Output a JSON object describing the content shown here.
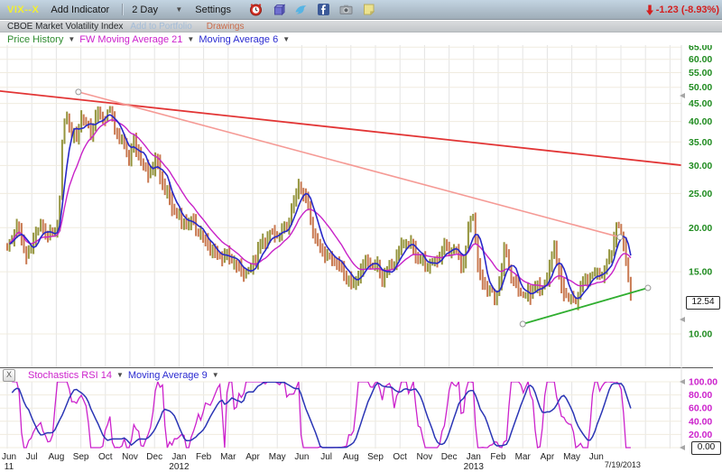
{
  "toolbar": {
    "symbol": "VIX--X",
    "add_indicator": "Add Indicator",
    "timeframe": "2 Day",
    "settings": "Settings",
    "icons": [
      "alarm-clock-icon",
      "cube-icon",
      "twitter-icon",
      "facebook-icon",
      "camera-icon",
      "note-icon"
    ],
    "change": "-1.23 (-8.93%)"
  },
  "subheader": {
    "index_name": "CBOE Market Volatility Index",
    "add_to_portfolio": "Add to Portfolio",
    "drawings": "Drawings"
  },
  "main_panel_header": {
    "price_history": "Price History",
    "ma21": "FW Moving Average 21",
    "ma6": "Moving Average 6"
  },
  "indicator_panel_header": {
    "close": "X",
    "stochastics": "Stochastics RSI 14",
    "ma9": "Moving Average 9"
  },
  "price_box": "12.54",
  "stoch_box": "0.00",
  "chart_data": [
    {
      "type": "candlestick",
      "symbol": "VIX--X",
      "title": "CBOE Market Volatility Index",
      "bar_interval": "2 Day",
      "y_scale": "log",
      "y_ticks": [
        "65.00",
        "60.00",
        "55.00",
        "50.00",
        "45.00",
        "40.00",
        "35.00",
        "30.00",
        "25.00",
        "20.00",
        "15.00",
        "10.00"
      ],
      "y_tick_values": [
        65,
        60,
        55,
        50,
        45,
        40,
        35,
        30,
        25,
        20,
        15,
        10
      ],
      "current_price": 12.54,
      "x_months": [
        "Jun",
        "Jul",
        "Aug",
        "Sep",
        "Oct",
        "Nov",
        "Dec",
        "Jan",
        "Feb",
        "Mar",
        "Apr",
        "May",
        "Jun",
        "Jul",
        "Aug",
        "Sep",
        "Oct",
        "Nov",
        "Dec",
        "Jan",
        "Feb",
        "Mar",
        "Apr",
        "May",
        "Jun"
      ],
      "x_sub_labels": [
        {
          "index": 0,
          "label": "11"
        },
        {
          "index": 7,
          "label": "2012"
        },
        {
          "index": 19,
          "label": "2013"
        }
      ],
      "end_date_label": "7/19/2013",
      "bar_count": 262,
      "up_color": "#95953e",
      "down_color": "#c97a52",
      "price_keyframes": [
        [
          0,
          17.5
        ],
        [
          0.4,
          19.5
        ],
        [
          0.8,
          16.5
        ],
        [
          1.2,
          20.5
        ],
        [
          1.6,
          19.0
        ],
        [
          1.9,
          17.8
        ],
        [
          2.1,
          21.0
        ],
        [
          2.25,
          36.0
        ],
        [
          2.45,
          43.0
        ],
        [
          2.6,
          39.0
        ],
        [
          2.8,
          35.5
        ],
        [
          3.0,
          42.0
        ],
        [
          3.2,
          38.0
        ],
        [
          3.45,
          36.5
        ],
        [
          3.7,
          43.0
        ],
        [
          3.95,
          41.0
        ],
        [
          4.15,
          45.0
        ],
        [
          4.4,
          37.0
        ],
        [
          4.7,
          33.5
        ],
        [
          4.95,
          30.5
        ],
        [
          5.15,
          36.0
        ],
        [
          5.45,
          32.0
        ],
        [
          5.75,
          28.5
        ],
        [
          6.05,
          30.0
        ],
        [
          6.35,
          26.0
        ],
        [
          6.7,
          23.5
        ],
        [
          7.1,
          21.5
        ],
        [
          7.5,
          20.0
        ],
        [
          7.9,
          18.8
        ],
        [
          8.3,
          17.8
        ],
        [
          8.7,
          16.8
        ],
        [
          9.1,
          15.8
        ],
        [
          9.5,
          15.0
        ],
        [
          9.9,
          15.8
        ],
        [
          10.3,
          17.2
        ],
        [
          10.7,
          18.5
        ],
        [
          11.1,
          19.5
        ],
        [
          11.5,
          21.5
        ],
        [
          11.85,
          25.5
        ],
        [
          12.15,
          23.5
        ],
        [
          12.5,
          19.8
        ],
        [
          12.9,
          17.5
        ],
        [
          13.3,
          16.0
        ],
        [
          13.7,
          14.8
        ],
        [
          14.1,
          14.3
        ],
        [
          14.5,
          16.2
        ],
        [
          14.9,
          15.2
        ],
        [
          15.3,
          14.6
        ],
        [
          15.7,
          16.5
        ],
        [
          16.1,
          17.8
        ],
        [
          16.5,
          17.0
        ],
        [
          16.9,
          16.3
        ],
        [
          17.3,
          16.0
        ],
        [
          17.8,
          16.8
        ],
        [
          18.2,
          17.3
        ],
        [
          18.6,
          16.5
        ],
        [
          18.95,
          22.3
        ],
        [
          19.2,
          14.0
        ],
        [
          19.5,
          13.2
        ],
        [
          19.8,
          13.0
        ],
        [
          20.1,
          14.5
        ],
        [
          20.3,
          18.5
        ],
        [
          20.55,
          13.8
        ],
        [
          20.9,
          12.9
        ],
        [
          21.1,
          12.6
        ],
        [
          21.4,
          13.9
        ],
        [
          21.7,
          13.5
        ],
        [
          22.0,
          14.0
        ],
        [
          22.3,
          17.3
        ],
        [
          22.55,
          13.6
        ],
        [
          22.85,
          13.1
        ],
        [
          23.1,
          12.6
        ],
        [
          23.4,
          13.3
        ],
        [
          23.7,
          13.9
        ],
        [
          24.0,
          14.8
        ],
        [
          24.3,
          15.6
        ],
        [
          24.6,
          17.5
        ],
        [
          24.85,
          20.5
        ],
        [
          25.05,
          18.5
        ],
        [
          25.2,
          15.5
        ],
        [
          25.4,
          12.54
        ]
      ],
      "overlays": [
        {
          "name": "Moving Average 6",
          "window": 6,
          "color": "#2828c8"
        },
        {
          "name": "FW Moving Average 21",
          "window": 21,
          "color": "#c822c8"
        }
      ],
      "trendlines": [
        {
          "name": "long-downtrend",
          "color": "#e23535",
          "width": 1.8,
          "anchors": false,
          "points": [
            [
              -0.3,
              48.8
            ],
            [
              27.6,
              30.0
            ]
          ]
        },
        {
          "name": "short-downtrend",
          "color": "#f59a95",
          "width": 1.6,
          "anchors": true,
          "points": [
            [
              2.9,
              48.5
            ],
            [
              24.96,
              18.8
            ]
          ]
        },
        {
          "name": "uptrend-support",
          "color": "#2fae2f",
          "width": 1.8,
          "anchors": true,
          "points": [
            [
              21.0,
              10.67
            ],
            [
              26.1,
              13.5
            ]
          ]
        }
      ]
    },
    {
      "type": "line",
      "indicator": "Stochastics RSI 14",
      "overlay": "Moving Average 9",
      "derivation": {
        "rsi_period": 14,
        "stoch_period": 14,
        "ma_period": 9
      },
      "y_ticks": [
        "100.00",
        "80.00",
        "60.00",
        "40.00",
        "20.00"
      ],
      "y_tick_values": [
        100,
        80,
        60,
        40,
        20
      ],
      "y_range": [
        0,
        100
      ],
      "current_value": "0.00",
      "line_color": "#cc22cc",
      "overlay_color": "#2a35b5"
    }
  ]
}
